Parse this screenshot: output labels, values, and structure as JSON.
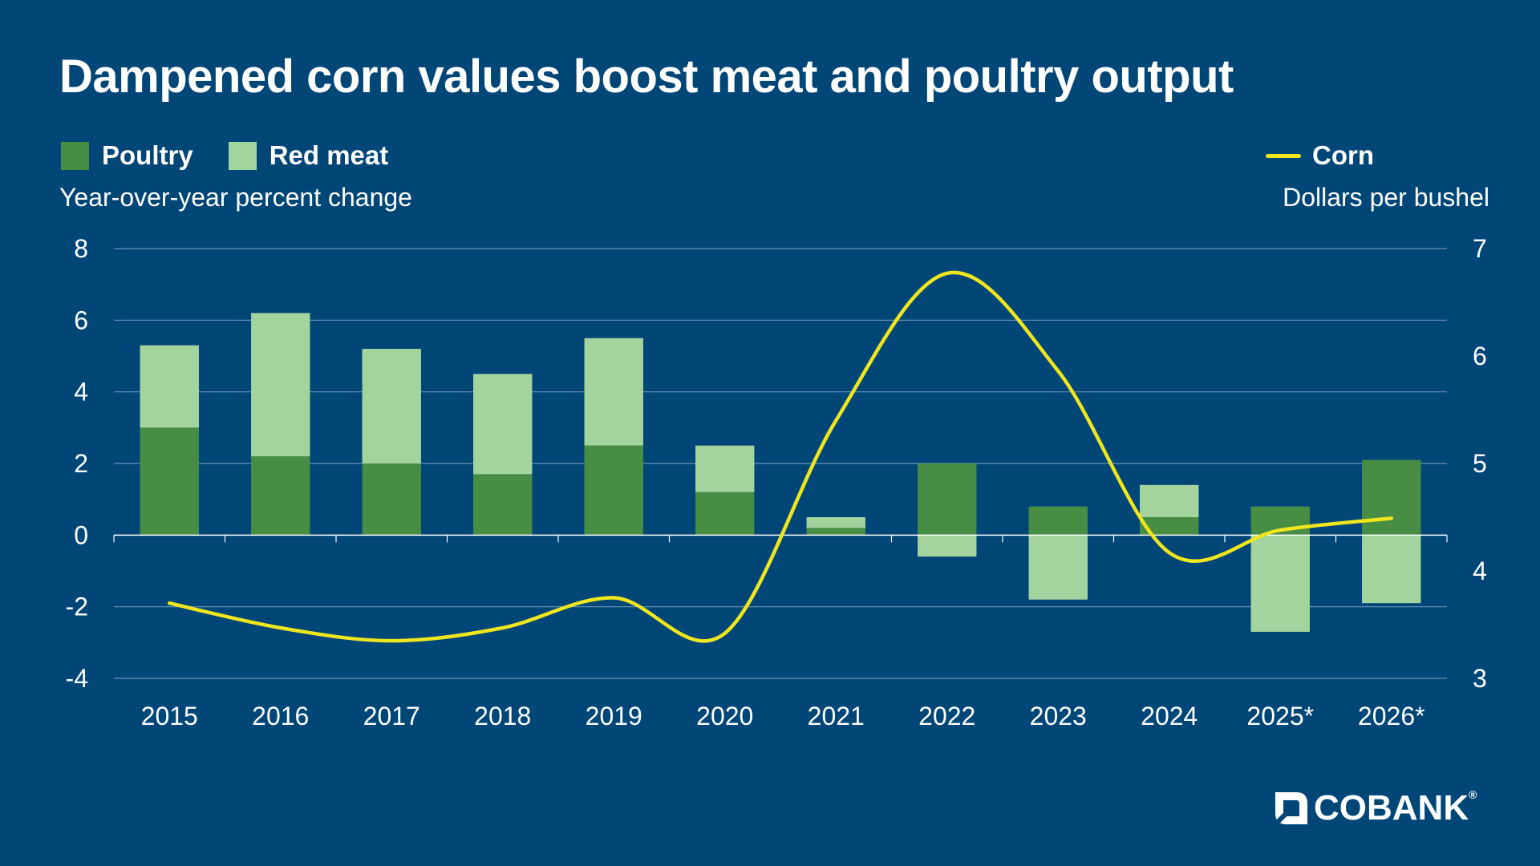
{
  "title": "Dampened corn values boost meat and poultry output",
  "legend": {
    "poultry_label": "Poultry",
    "redmeat_label": "Red meat",
    "corn_label": "Corn"
  },
  "axis_labels": {
    "left": "Year-over-year percent change",
    "right": "Dollars per bushel"
  },
  "colors": {
    "background": "#004677",
    "poultry": "#478d43",
    "red_meat": "#a4d49e",
    "corn": "#f0e61d",
    "gridline": "#6b93b6",
    "text": "#ffffff"
  },
  "brand": {
    "name": "COBANK",
    "trademark": "®"
  },
  "chart_data": {
    "type": "bar",
    "stacked": true,
    "categories": [
      "2015",
      "2016",
      "2017",
      "2018",
      "2019",
      "2020",
      "2021",
      "2022",
      "2023",
      "2024",
      "2025*",
      "2026*"
    ],
    "series": [
      {
        "name": "Poultry",
        "axis": "left",
        "type": "bar",
        "values": [
          3.0,
          2.2,
          2.0,
          1.7,
          2.5,
          1.2,
          0.2,
          2.0,
          0.8,
          0.5,
          0.8,
          2.1
        ]
      },
      {
        "name": "Red meat",
        "axis": "left",
        "type": "bar",
        "values": [
          2.3,
          4.0,
          3.2,
          2.8,
          3.0,
          1.3,
          0.3,
          -0.6,
          -1.8,
          0.9,
          -2.7,
          -1.9
        ]
      },
      {
        "name": "Corn",
        "axis": "right",
        "type": "line",
        "values": [
          3.7,
          3.47,
          3.35,
          3.47,
          3.75,
          3.42,
          5.4,
          6.77,
          5.86,
          4.17,
          4.38,
          4.49
        ]
      }
    ],
    "y_left": {
      "label": "Year-over-year percent change",
      "range": [
        -4,
        8
      ],
      "ticks": [
        "8",
        "6",
        "4",
        "2",
        "0",
        "-2",
        "-4"
      ],
      "tick_values": [
        8,
        6,
        4,
        2,
        0,
        -2,
        -4
      ]
    },
    "y_right": {
      "label": "Dollars per bushel",
      "range": [
        3,
        7
      ],
      "ticks": [
        "7",
        "6",
        "5",
        "4",
        "3"
      ],
      "tick_values": [
        7,
        6,
        5,
        4,
        3
      ]
    },
    "grid": true,
    "legend_position": "top",
    "footnote_marker": "*"
  }
}
